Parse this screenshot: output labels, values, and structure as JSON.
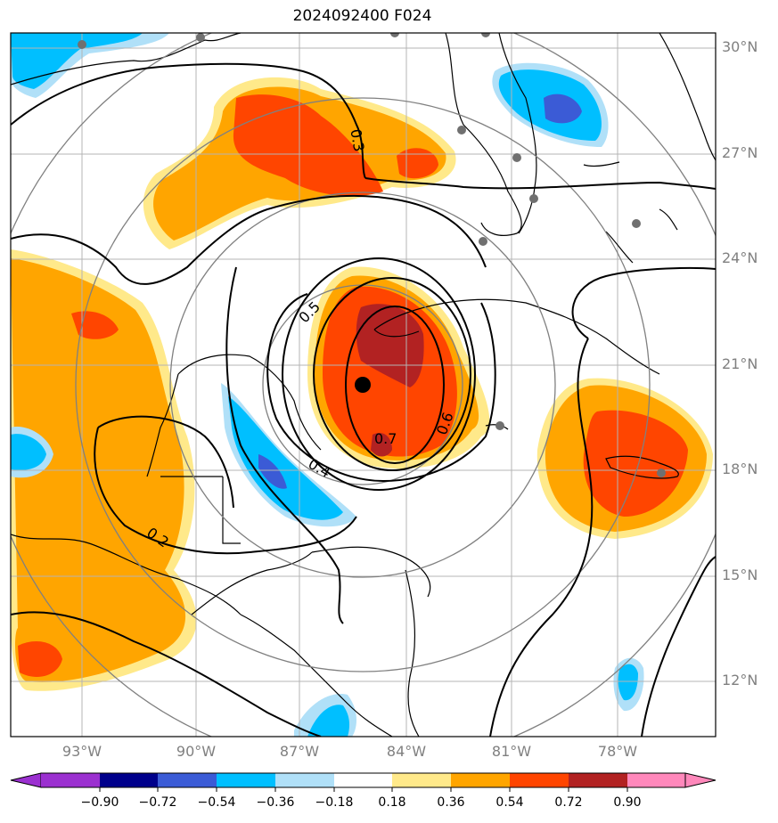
{
  "title": "2024092400 F024",
  "lat_labels": [
    "30°N",
    "27°N",
    "24°N",
    "21°N",
    "18°N",
    "15°N",
    "12°N"
  ],
  "lon_labels": [
    "93°W",
    "90°W",
    "87°W",
    "84°W",
    "81°W",
    "78°W"
  ],
  "contour_labels": [
    "0.3",
    "0.5",
    "0.6",
    "0.7",
    "0.4",
    "0.2"
  ],
  "colorbar": {
    "ticks": [
      "−0.90",
      "−0.72",
      "−0.54",
      "−0.36",
      "−0.18",
      "0.18",
      "0.36",
      "0.54",
      "0.72",
      "0.90"
    ],
    "colors": [
      "#9b30d0",
      "#00008b",
      "#3b5bd6",
      "#00bfff",
      "#b0e0f8",
      "#ffffff",
      "#ffe98a",
      "#ffa500",
      "#ff4500",
      "#b22222",
      "#ff88bb"
    ]
  },
  "colors": {
    "orange": "#ffa500",
    "red_orange": "#ff4500",
    "dark_red": "#b22222",
    "yellow": "#ffe98a",
    "deep_sky_blue": "#00bfff",
    "light_blue": "#b0e0f8",
    "royal_blue": "#3b5bd6",
    "grid": "#b4b4b4",
    "range_ring": "#808080"
  }
}
